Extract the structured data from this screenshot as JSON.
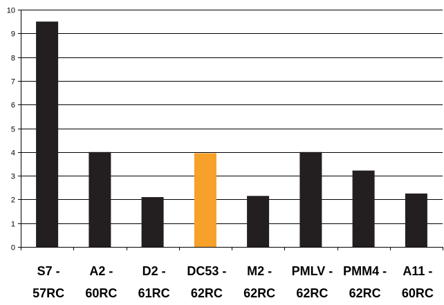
{
  "chart_data": {
    "type": "bar",
    "title": "",
    "xlabel": "",
    "ylabel": "",
    "ylim": [
      0,
      10
    ],
    "yticks": [
      0,
      1,
      2,
      3,
      4,
      5,
      6,
      7,
      8,
      9,
      10
    ],
    "grid": true,
    "legend": "none",
    "categories": [
      [
        "S7 -",
        "57RC"
      ],
      [
        "A2 -",
        "60RC"
      ],
      [
        "D2 -",
        "61RC"
      ],
      [
        "DC53 -",
        "62RC"
      ],
      [
        "M2 -",
        "62RC"
      ],
      [
        "PMLV -",
        "62RC"
      ],
      [
        "PMM4 -",
        "62RC"
      ],
      [
        "A11 -",
        "60RC"
      ]
    ],
    "values": [
      9.5,
      4.0,
      2.1,
      3.95,
      2.15,
      4.0,
      3.22,
      2.25
    ],
    "colors": [
      "#231f20",
      "#231f20",
      "#231f20",
      "#f7a02a",
      "#231f20",
      "#231f20",
      "#231f20",
      "#231f20"
    ],
    "highlight_category": "DC53 - 62RC",
    "bar_color": "#231f20",
    "highlight_color": "#f7a02a"
  }
}
